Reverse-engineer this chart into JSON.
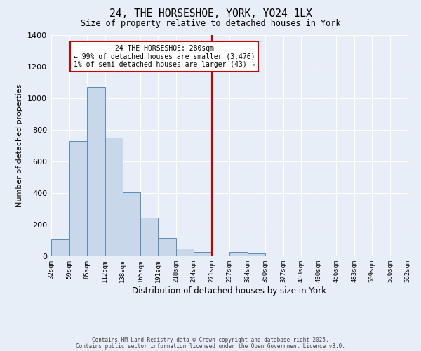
{
  "title": "24, THE HORSESHOE, YORK, YO24 1LX",
  "subtitle": "Size of property relative to detached houses in York",
  "xlabel": "Distribution of detached houses by size in York",
  "ylabel": "Number of detached properties",
  "bar_color": "#c8d8ea",
  "bar_edge_color": "#5b8db8",
  "background_color": "#e8eef8",
  "grid_color": "#ffffff",
  "bin_edges": [
    32,
    59,
    85,
    112,
    138,
    165,
    191,
    218,
    244,
    271,
    297,
    324,
    350,
    377,
    403,
    430,
    456,
    483,
    509,
    536,
    562
  ],
  "bin_labels": [
    "32sqm",
    "59sqm",
    "85sqm",
    "112sqm",
    "138sqm",
    "165sqm",
    "191sqm",
    "218sqm",
    "244sqm",
    "271sqm",
    "297sqm",
    "324sqm",
    "350sqm",
    "377sqm",
    "403sqm",
    "430sqm",
    "456sqm",
    "483sqm",
    "509sqm",
    "536sqm",
    "562sqm"
  ],
  "counts": [
    105,
    730,
    1070,
    750,
    405,
    245,
    115,
    50,
    25,
    0,
    25,
    20,
    0,
    0,
    0,
    0,
    0,
    0,
    0,
    0
  ],
  "vline_x": 271,
  "vline_color": "#cc0000",
  "annotation_title": "24 THE HORSESHOE: 280sqm",
  "annotation_line1": "← 99% of detached houses are smaller (3,476)",
  "annotation_line2": "1% of semi-detached houses are larger (43) →",
  "annotation_box_color": "#ffffff",
  "annotation_box_edge": "#cc0000",
  "ylim": [
    0,
    1400
  ],
  "yticks": [
    0,
    200,
    400,
    600,
    800,
    1000,
    1200,
    1400
  ],
  "footer1": "Contains HM Land Registry data © Crown copyright and database right 2025.",
  "footer2": "Contains public sector information licensed under the Open Government Licence v3.0."
}
